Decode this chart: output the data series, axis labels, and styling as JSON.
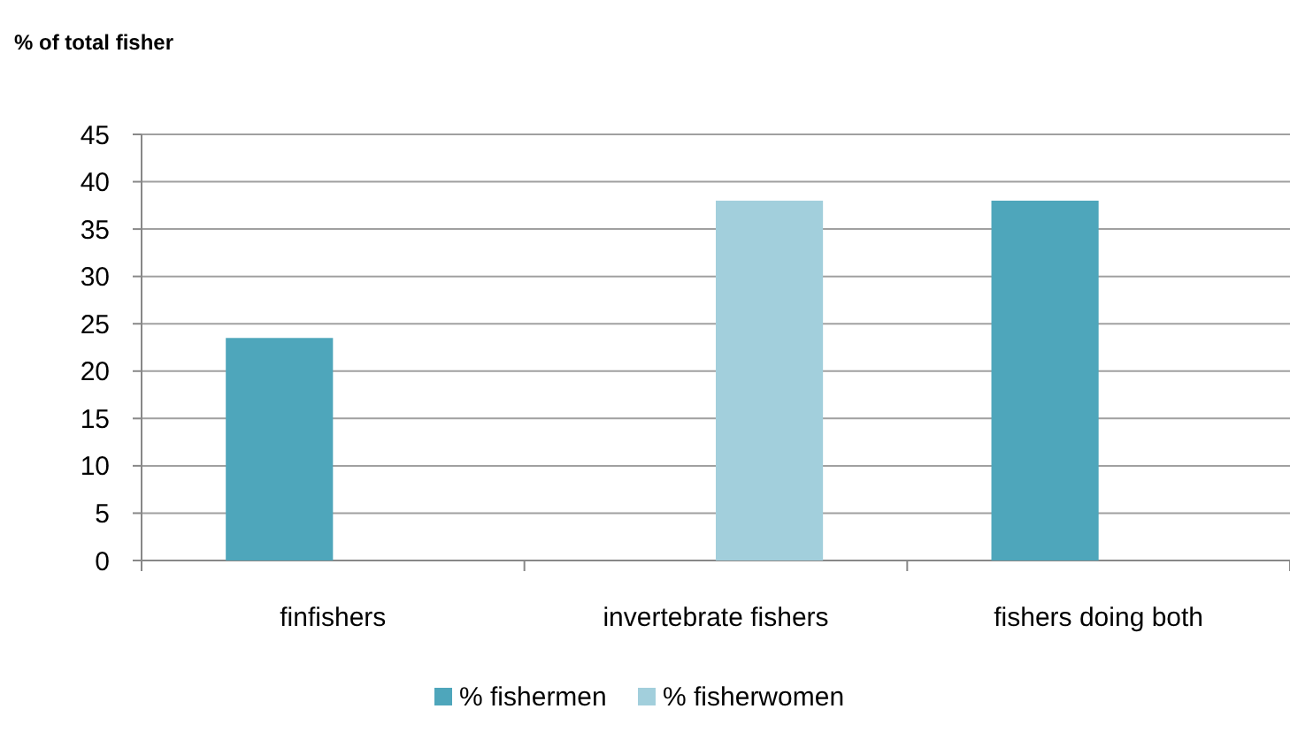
{
  "chart_data": {
    "type": "bar",
    "ylabel": "% of total fisher",
    "categories": [
      "finfishers",
      "invertebrate fishers",
      "fishers doing both"
    ],
    "series": [
      {
        "name": "% fishermen",
        "color": "#4ea6bb",
        "values": [
          23.5,
          null,
          38
        ]
      },
      {
        "name": "% fisherwomen",
        "color": "#a2cfdc",
        "values": [
          null,
          38,
          null
        ]
      }
    ],
    "ylim": [
      0,
      45
    ],
    "yticks": [
      0,
      5,
      10,
      15,
      20,
      25,
      30,
      35,
      40,
      45
    ],
    "grid": "y",
    "legend": "bottom"
  }
}
